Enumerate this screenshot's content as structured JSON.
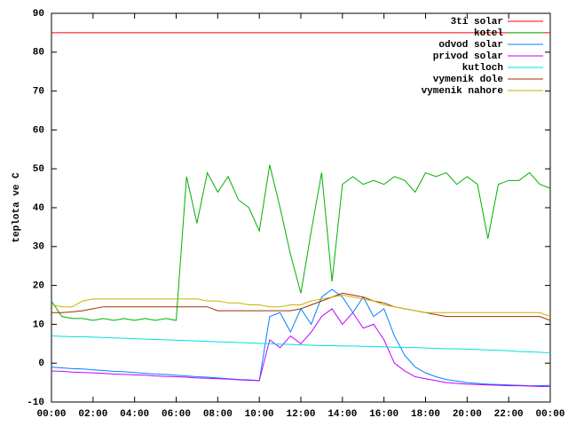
{
  "chart_data": {
    "type": "line",
    "y_label": "teplota ve C",
    "x": [
      0,
      0.5,
      1,
      1.5,
      2,
      2.5,
      3,
      3.5,
      4,
      4.5,
      5,
      5.5,
      6,
      6.5,
      7,
      7.5,
      8,
      8.5,
      9,
      9.5,
      10,
      10.5,
      11,
      11.5,
      12,
      12.5,
      13,
      13.5,
      14,
      14.5,
      15,
      15.5,
      16,
      16.5,
      17,
      17.5,
      18,
      18.5,
      19,
      19.5,
      20,
      20.5,
      21,
      21.5,
      22,
      22.5,
      23,
      23.5,
      24
    ],
    "series": [
      {
        "name": "3ti solar",
        "color": "#ff0000",
        "values": [
          85,
          85,
          85,
          85,
          85,
          85,
          85,
          85,
          85,
          85,
          85,
          85,
          85,
          85,
          85,
          85,
          85,
          85,
          85,
          85,
          85,
          85,
          85,
          85,
          85,
          85,
          85,
          85,
          85,
          85,
          85,
          85,
          85,
          85,
          85,
          85,
          85,
          85,
          85,
          85,
          85,
          85,
          85,
          85,
          85,
          85,
          85,
          85,
          85
        ]
      },
      {
        "name": "kotel",
        "color": "#00b000",
        "values": [
          16,
          12,
          11.5,
          11.5,
          11,
          11.5,
          11,
          11.5,
          11,
          11.5,
          11,
          11.5,
          11,
          48,
          36,
          49,
          44,
          48,
          42,
          40,
          34,
          51,
          40,
          28,
          18,
          34,
          49,
          21,
          46,
          48,
          46,
          47,
          46,
          48,
          47,
          44,
          49,
          48,
          49,
          46,
          48,
          46,
          32,
          46,
          47,
          47,
          49,
          46,
          45
        ]
      },
      {
        "name": "odvod solar",
        "color": "#0080ff",
        "values": [
          -1,
          -1.2,
          -1.4,
          -1.5,
          -1.7,
          -1.9,
          -2.1,
          -2.2,
          -2.4,
          -2.6,
          -2.8,
          -2.9,
          -3.1,
          -3.3,
          -3.5,
          -3.6,
          -3.8,
          -4,
          -4.2,
          -4.3,
          -4.5,
          12,
          13,
          8,
          14,
          10,
          17,
          19,
          17,
          13,
          17,
          12,
          14,
          7,
          2,
          -1,
          -2.5,
          -3.5,
          -4.2,
          -4.6,
          -5,
          -5.2,
          -5.4,
          -5.5,
          -5.6,
          -5.7,
          -5.8,
          -5.8,
          -5.7
        ]
      },
      {
        "name": "privod solar",
        "color": "#c000ff",
        "values": [
          -2,
          -2.1,
          -2.3,
          -2.4,
          -2.5,
          -2.6,
          -2.8,
          -2.9,
          -3,
          -3.1,
          -3.3,
          -3.4,
          -3.5,
          -3.6,
          -3.8,
          -3.9,
          -4,
          -4.1,
          -4.3,
          -4.4,
          -4.5,
          6,
          4,
          7,
          5,
          8,
          12,
          14,
          10,
          13,
          9,
          10,
          6,
          0,
          -2,
          -3.5,
          -4,
          -4.5,
          -5,
          -5.2,
          -5.4,
          -5.5,
          -5.6,
          -5.7,
          -5.8,
          -5.8,
          -5.9,
          -6,
          -6
        ]
      },
      {
        "name": "kutloch",
        "color": "#00e0e0",
        "values": [
          7,
          6.9,
          6.8,
          6.8,
          6.7,
          6.6,
          6.5,
          6.4,
          6.3,
          6.2,
          6.1,
          6,
          5.9,
          5.8,
          5.7,
          5.6,
          5.5,
          5.4,
          5.3,
          5.2,
          5.1,
          5,
          4.9,
          4.8,
          4.7,
          4.6,
          4.5,
          4.5,
          4.4,
          4.4,
          4.3,
          4.3,
          4.2,
          4.1,
          4,
          4,
          3.9,
          3.8,
          3.7,
          3.7,
          3.6,
          3.5,
          3.4,
          3.3,
          3.2,
          3,
          2.9,
          2.8,
          2.6
        ]
      },
      {
        "name": "vymenik dole",
        "color": "#a03000",
        "values": [
          13,
          13,
          13.2,
          13.5,
          14,
          14.5,
          14.5,
          14.5,
          14.5,
          14.5,
          14.5,
          14.5,
          14.5,
          14.5,
          14.5,
          14.5,
          13.5,
          13.5,
          13.5,
          13.5,
          13.5,
          13.5,
          13.5,
          13.5,
          14,
          15,
          16,
          17,
          18,
          17.5,
          17,
          16,
          15.5,
          14.5,
          14,
          13.5,
          13,
          12.5,
          12,
          12,
          12,
          12,
          12,
          12,
          12,
          12,
          12,
          12,
          11
        ]
      },
      {
        "name": "vymenik nahore",
        "color": "#c8b400",
        "values": [
          15,
          14.5,
          14.5,
          16,
          16.5,
          16.5,
          16.5,
          16.5,
          16.5,
          16.5,
          16.5,
          16.5,
          16.5,
          16.5,
          16.5,
          16,
          16,
          15.5,
          15.5,
          15,
          15,
          14.5,
          14.5,
          15,
          15,
          16,
          16.5,
          17,
          17.5,
          17,
          16.5,
          16,
          15,
          14.5,
          14,
          13.5,
          13,
          13,
          13,
          13,
          13,
          13,
          13,
          13,
          13,
          13,
          13,
          13,
          12
        ]
      }
    ],
    "xlim": [
      0,
      24
    ],
    "xticks": [
      {
        "value": 0,
        "label": "00:00"
      },
      {
        "value": 2,
        "label": "02:00"
      },
      {
        "value": 4,
        "label": "04:00"
      },
      {
        "value": 6,
        "label": "06:00"
      },
      {
        "value": 8,
        "label": "08:00"
      },
      {
        "value": 10,
        "label": "10:00"
      },
      {
        "value": 12,
        "label": "12:00"
      },
      {
        "value": 14,
        "label": "14:00"
      },
      {
        "value": 16,
        "label": "16:00"
      },
      {
        "value": 18,
        "label": "18:00"
      },
      {
        "value": 20,
        "label": "20:00"
      },
      {
        "value": 22,
        "label": "22:00"
      },
      {
        "value": 24,
        "label": "00:00"
      }
    ],
    "ylim": [
      -10,
      90
    ],
    "yticks": [
      -10,
      0,
      10,
      20,
      30,
      40,
      50,
      60,
      70,
      80,
      90
    ],
    "legend": "top-right"
  }
}
